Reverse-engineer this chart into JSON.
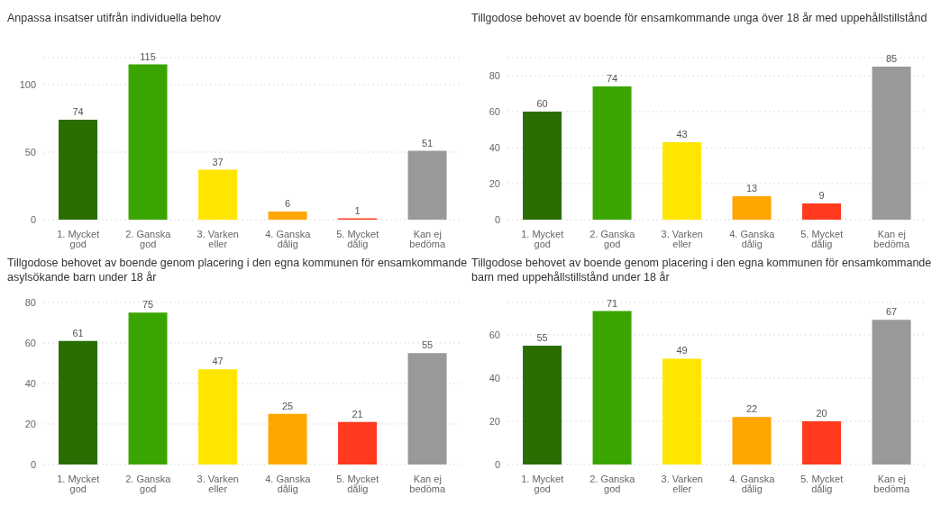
{
  "chart_data": [
    {
      "type": "bar",
      "title": "Anpassa insatser utifrån individuella behov",
      "categories": [
        "1. Mycket god",
        "2. Ganska god",
        "3. Varken eller",
        "4. Ganska dålig",
        "5. Mycket dålig",
        "Kan ej bedöma"
      ],
      "values": [
        74,
        115,
        37,
        6,
        1,
        51
      ],
      "colors": [
        "#2a6e00",
        "#3aa500",
        "#ffe600",
        "#ffa600",
        "#ff3a1e",
        "#999999"
      ],
      "ylim": [
        0,
        120
      ],
      "yticks": [
        0,
        50,
        100
      ],
      "grid": "y",
      "data_labels": true
    },
    {
      "type": "bar",
      "title": "Tillgodose behovet av boende för ensamkommande unga över 18 år med uppehållstillstånd",
      "categories": [
        "1. Mycket god",
        "2. Ganska god",
        "3. Varken eller",
        "4. Ganska dålig",
        "5. Mycket dålig",
        "Kan ej bedöma"
      ],
      "values": [
        60,
        74,
        43,
        13,
        9,
        85
      ],
      "colors": [
        "#2a6e00",
        "#3aa500",
        "#ffe600",
        "#ffa600",
        "#ff3a1e",
        "#999999"
      ],
      "ylim": [
        0,
        90
      ],
      "yticks": [
        0,
        20,
        40,
        60,
        80
      ],
      "grid": "y",
      "data_labels": true
    },
    {
      "type": "bar",
      "title": "Tillgodose behovet av boende genom placering i den egna kommunen för ensamkommande asylsökande barn under 18 år",
      "categories": [
        "1. Mycket god",
        "2. Ganska god",
        "3. Varken eller",
        "4. Ganska dålig",
        "5. Mycket dålig",
        "Kan ej bedöma"
      ],
      "values": [
        61,
        75,
        47,
        25,
        21,
        55
      ],
      "colors": [
        "#2a6e00",
        "#3aa500",
        "#ffe600",
        "#ffa600",
        "#ff3a1e",
        "#999999"
      ],
      "ylim": [
        0,
        80
      ],
      "yticks": [
        0,
        20,
        40,
        60,
        80
      ],
      "grid": "y",
      "data_labels": true
    },
    {
      "type": "bar",
      "title": "Tillgodose behovet av boende genom placering i den egna kommunen för ensamkommande barn med uppehållstillstånd under 18 år",
      "categories": [
        "1. Mycket god",
        "2. Ganska god",
        "3. Varken eller",
        "4. Ganska dålig",
        "5. Mycket dålig",
        "Kan ej bedöma"
      ],
      "values": [
        55,
        71,
        49,
        22,
        20,
        67
      ],
      "colors": [
        "#2a6e00",
        "#3aa500",
        "#ffe600",
        "#ffa600",
        "#ff3a1e",
        "#999999"
      ],
      "ylim": [
        0,
        75
      ],
      "yticks": [
        0,
        20,
        40,
        60
      ],
      "grid": "y",
      "data_labels": true
    }
  ]
}
